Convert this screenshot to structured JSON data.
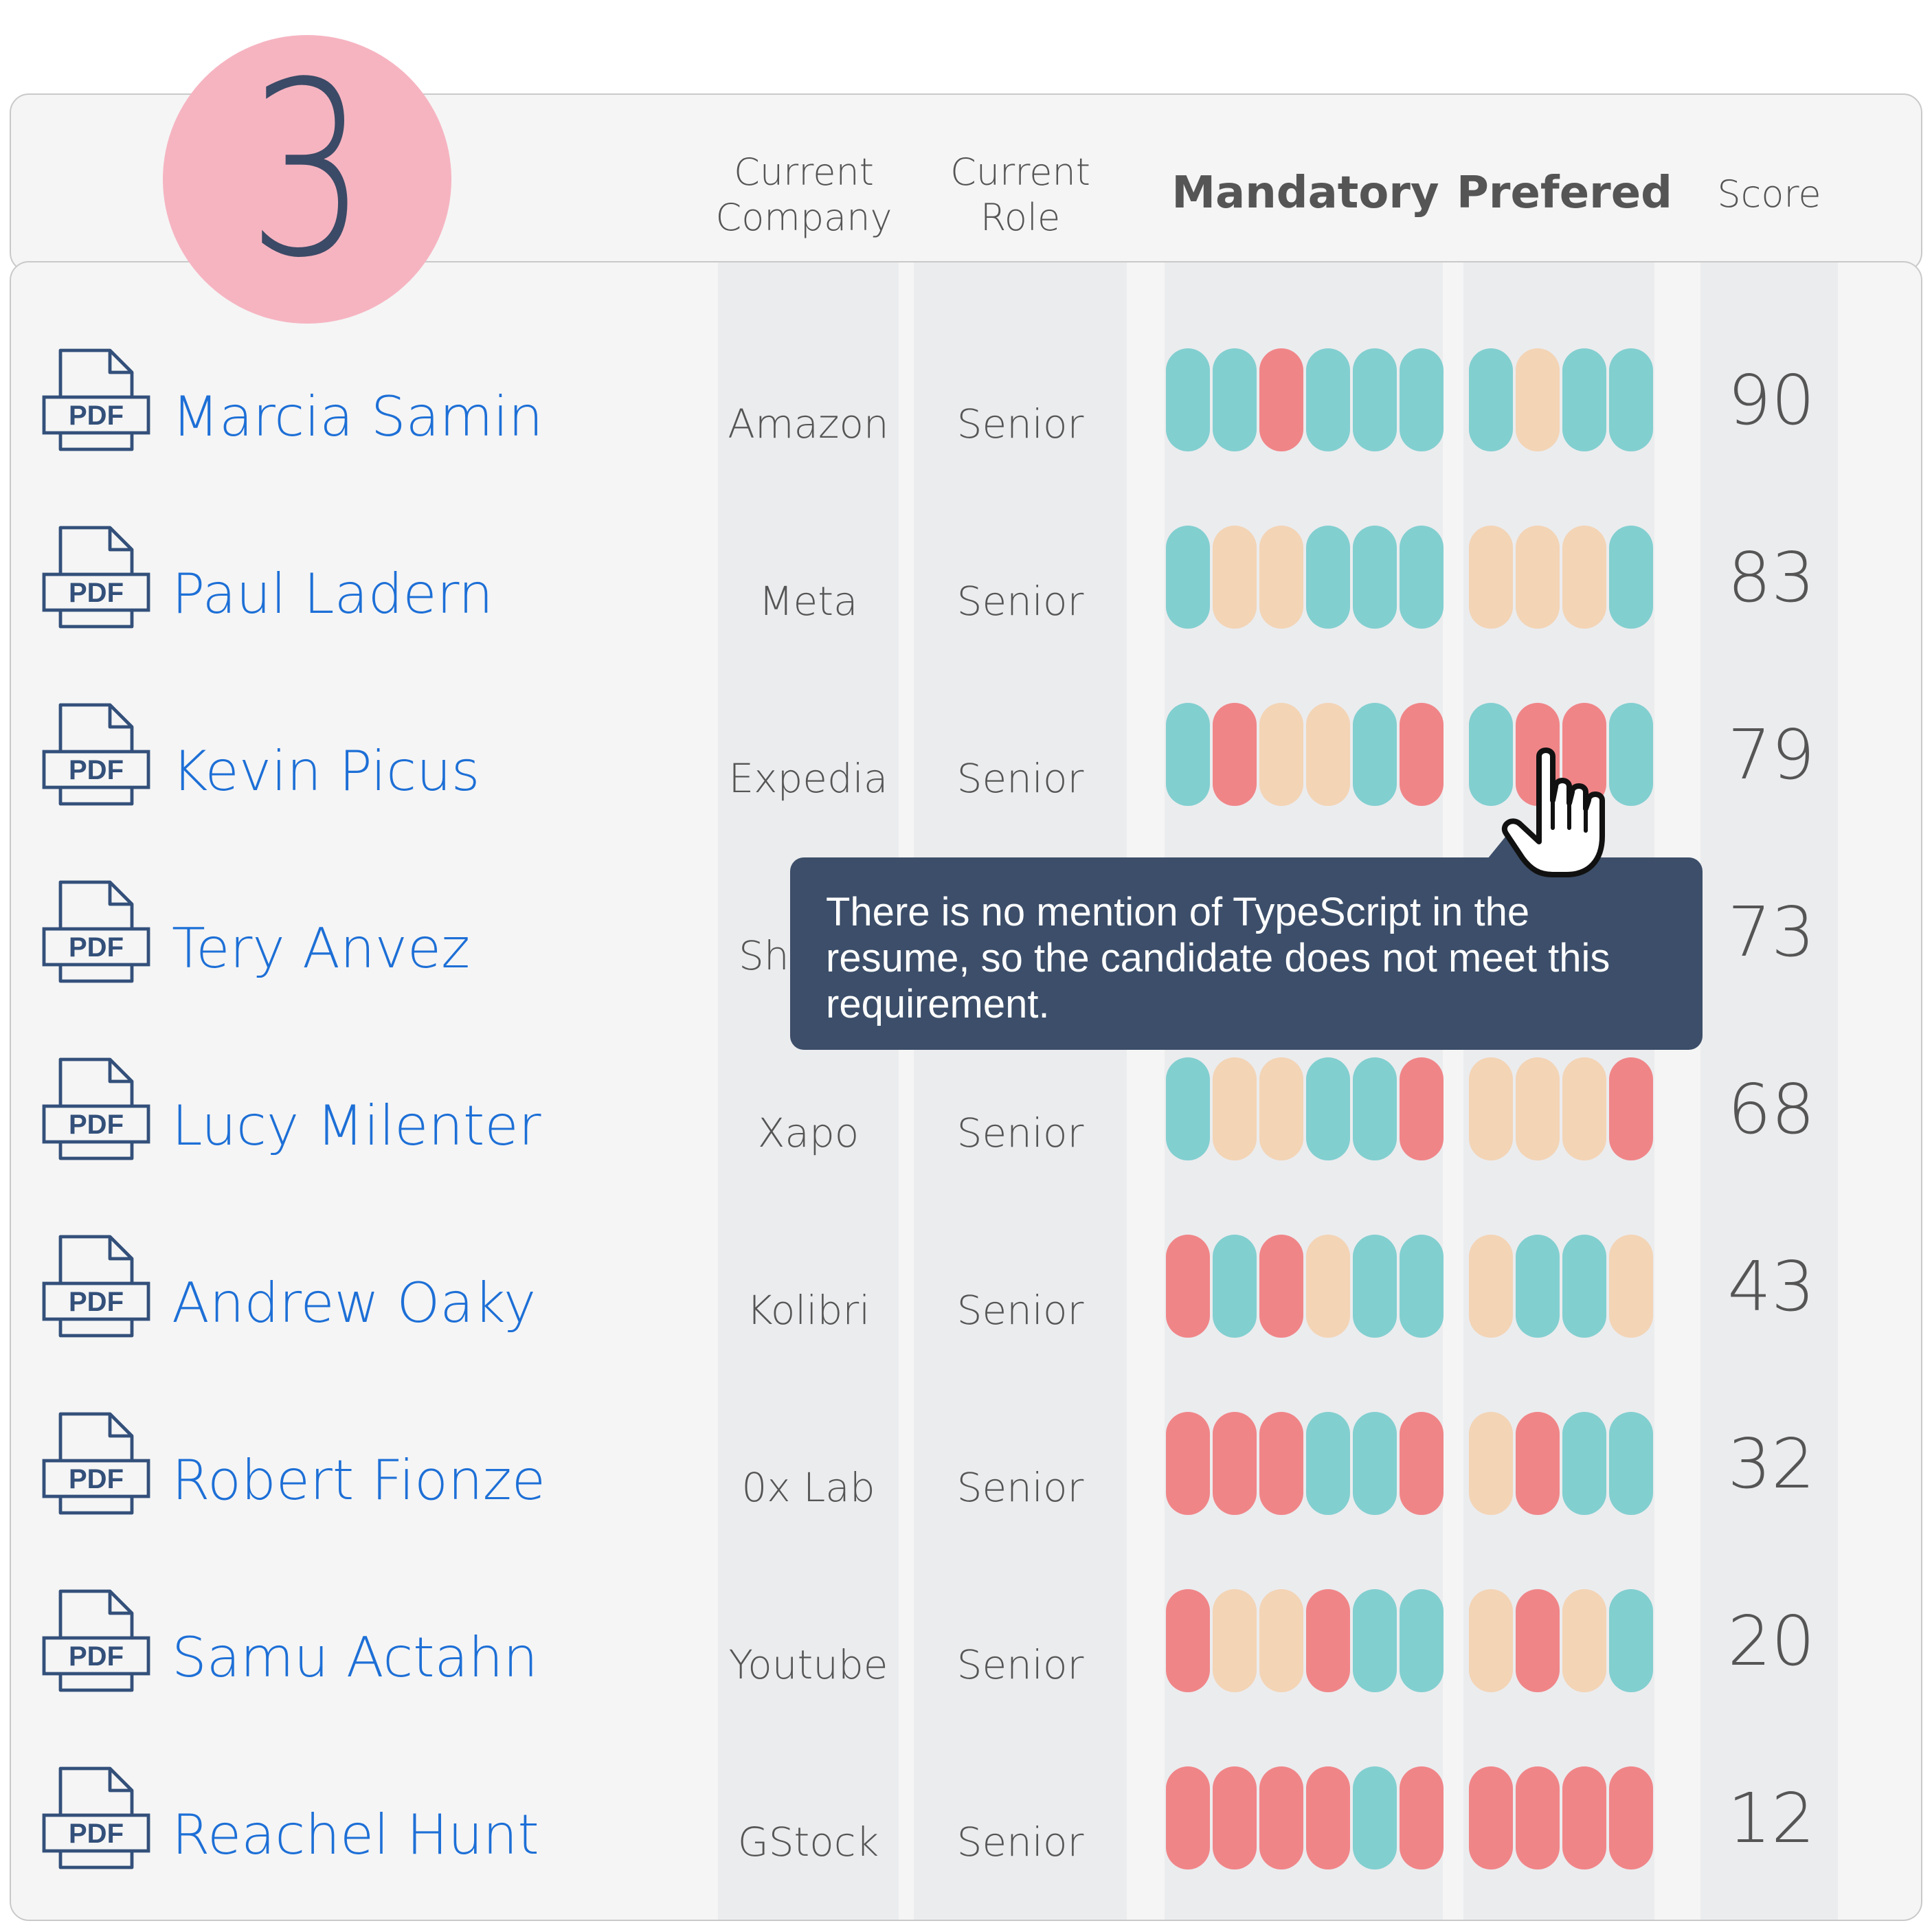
{
  "step_number": "3",
  "columns": {
    "company_line1": "Current",
    "company_line2": "Company",
    "role_line1": "Current",
    "role_line2": "Role",
    "mandatory": "Mandatory",
    "preferred": "Prefered",
    "score": "Score"
  },
  "pdf_icon_label": "PDF",
  "candidates": [
    {
      "name": "Marcia Samin",
      "company": "Amazon",
      "role": "Senior",
      "mandatory": [
        "pass",
        "pass",
        "fail",
        "pass",
        "pass",
        "pass"
      ],
      "preferred": [
        "pass",
        "partial",
        "pass",
        "pass"
      ],
      "score": "90"
    },
    {
      "name": "Paul Ladern",
      "company": "Meta",
      "role": "Senior",
      "mandatory": [
        "pass",
        "partial",
        "partial",
        "pass",
        "pass",
        "pass"
      ],
      "preferred": [
        "partial",
        "partial",
        "partial",
        "pass"
      ],
      "score": "83"
    },
    {
      "name": "Kevin Picus",
      "company": "Expedia",
      "role": "Senior",
      "mandatory": [
        "pass",
        "fail",
        "partial",
        "partial",
        "pass",
        "fail"
      ],
      "preferred": [
        "pass",
        "fail",
        "fail",
        "pass"
      ],
      "score": "79"
    },
    {
      "name": "Tery Anvez",
      "company": "Sh",
      "role": "",
      "mandatory": [],
      "preferred": [],
      "score": "73"
    },
    {
      "name": "Lucy Milenter",
      "company": "Xapo",
      "role": "Senior",
      "mandatory": [
        "pass",
        "partial",
        "partial",
        "pass",
        "pass",
        "fail"
      ],
      "preferred": [
        "partial",
        "partial",
        "partial",
        "fail"
      ],
      "score": "68"
    },
    {
      "name": "Andrew Oaky",
      "company": "Kolibri",
      "role": "Senior",
      "mandatory": [
        "fail",
        "pass",
        "fail",
        "partial",
        "pass",
        "pass"
      ],
      "preferred": [
        "partial",
        "pass",
        "pass",
        "partial"
      ],
      "score": "43"
    },
    {
      "name": "Robert Fionze",
      "company": "0x Lab",
      "role": "Senior",
      "mandatory": [
        "fail",
        "fail",
        "fail",
        "pass",
        "pass",
        "fail"
      ],
      "preferred": [
        "partial",
        "fail",
        "pass",
        "pass"
      ],
      "score": "32"
    },
    {
      "name": "Samu Actahn",
      "company": "Youtube",
      "role": "Senior",
      "mandatory": [
        "fail",
        "partial",
        "partial",
        "fail",
        "pass",
        "pass"
      ],
      "preferred": [
        "partial",
        "fail",
        "partial",
        "pass"
      ],
      "score": "20"
    },
    {
      "name": "Reachel Hunt",
      "company": "GStock",
      "role": "Senior",
      "mandatory": [
        "fail",
        "fail",
        "fail",
        "fail",
        "pass",
        "fail"
      ],
      "preferred": [
        "fail",
        "fail",
        "fail",
        "fail"
      ],
      "score": "12"
    }
  ],
  "tooltip": {
    "text": "There is no mention of TypeScript in the resume, so the candidate does not meet this requirement."
  },
  "colors": {
    "pass": "#82cfd0",
    "partial": "#f3d4b5",
    "fail": "#f08588",
    "link": "#1d6fd6",
    "tooltip_bg": "#3c4e69",
    "badge": "#f6b4c1"
  }
}
